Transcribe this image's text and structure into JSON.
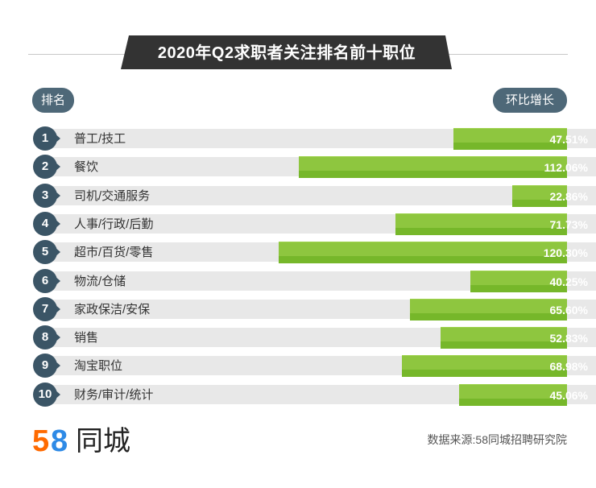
{
  "header": {
    "title": "2020年Q2求职者关注排名前十职位",
    "rank_pill": "排名",
    "growth_pill": "环比增长"
  },
  "chart_data": {
    "type": "bar",
    "title": "2020年Q2求职者关注排名前十职位",
    "ranks": [
      "1",
      "2",
      "3",
      "4",
      "5",
      "6",
      "7",
      "8",
      "9",
      "10"
    ],
    "categories": [
      "普工/技工",
      "餐饮",
      "司机/交通服务",
      "人事/行政/后勤",
      "超市/百货/零售",
      "物流/仓储",
      "家政保洁/安保",
      "销售",
      "淘宝职位",
      "财务/审计/统计"
    ],
    "values": [
      47.51,
      112.06,
      22.86,
      71.73,
      120.3,
      40.25,
      65.6,
      52.83,
      68.98,
      45.06
    ],
    "value_labels": [
      "47.51%",
      "112.06%",
      "22.86%",
      "71.73%",
      "120.30%",
      "40.25%",
      "65.60%",
      "52.83%",
      "68.98%",
      "45.06%"
    ],
    "unit": "%",
    "colors": {
      "bar": "#8ec63f",
      "bar_shade": "#76b72a",
      "track": "#e8e8e8",
      "badge": "#3b5566",
      "banner": "#333333"
    }
  },
  "logo": {
    "five": "5",
    "eight": "8",
    "text": "同城"
  },
  "footer": {
    "source": "数据来源:58同城招聘研究院"
  }
}
